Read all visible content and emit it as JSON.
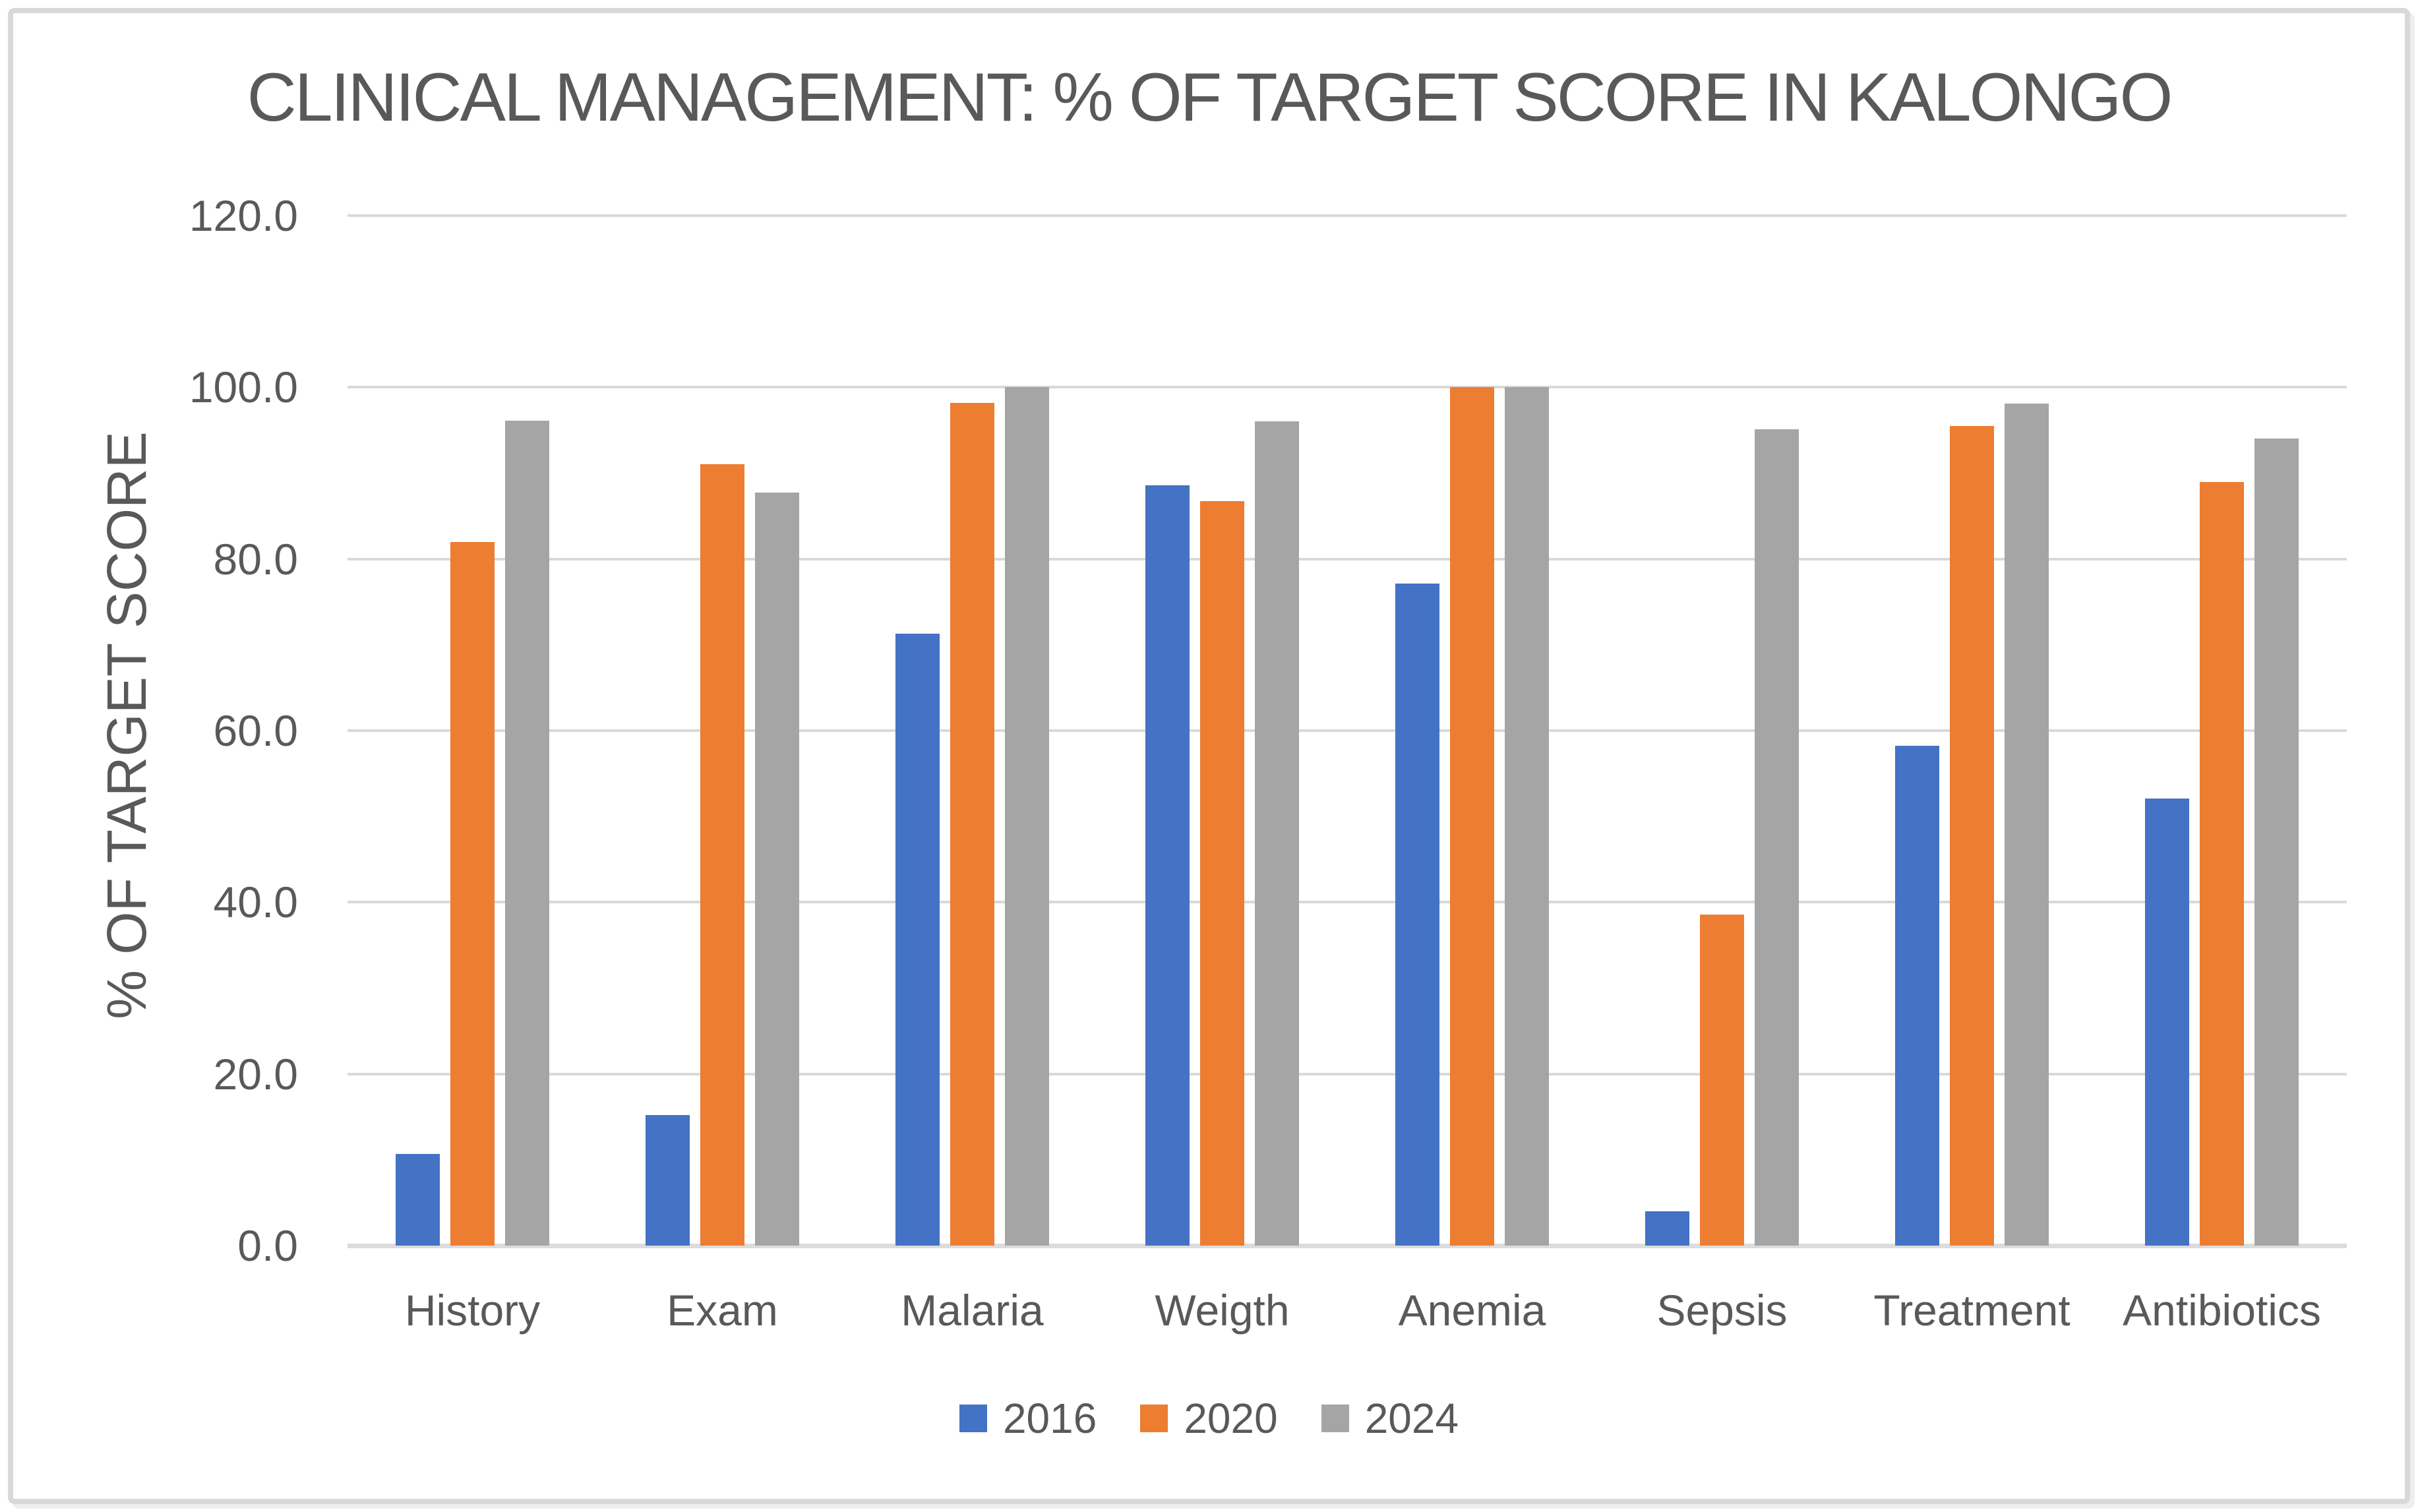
{
  "chart_data": {
    "type": "bar",
    "title": "CLINICAL MANAGEMENT: % OF TARGET SCORE IN KALONGO",
    "xlabel": "",
    "ylabel": "% OF TARGET SCORE",
    "categories": [
      "History",
      "Exam",
      "Malaria",
      "Weigth",
      "Anemia",
      "Sepsis",
      "Treatment",
      "Antibiotics"
    ],
    "series": [
      {
        "name": "2016",
        "color": "#4472C4",
        "values": [
          10.7,
          15.2,
          71.3,
          88.6,
          77.1,
          4.0,
          58.2,
          52.1
        ]
      },
      {
        "name": "2020",
        "color": "#ED7D31",
        "values": [
          82.0,
          91.0,
          98.2,
          86.7,
          100.0,
          38.6,
          95.5,
          89.0
        ]
      },
      {
        "name": "2024",
        "color": "#A5A5A5",
        "values": [
          96.1,
          87.7,
          100.0,
          96.0,
          100.0,
          95.1,
          98.1,
          94.0
        ]
      }
    ],
    "ylim": [
      0,
      120
    ],
    "ytick_step": 20,
    "ytick_labels": [
      "0.0",
      "20.0",
      "40.0",
      "60.0",
      "80.0",
      "100.0",
      "120.0"
    ],
    "grid": true,
    "legend_position": "bottom",
    "colors": {
      "text": "#595959",
      "gridline": "#D9D9D9",
      "axis_line": "#DCDCDC",
      "border": "#D9D9D9",
      "background": "#FFFFFF"
    }
  }
}
